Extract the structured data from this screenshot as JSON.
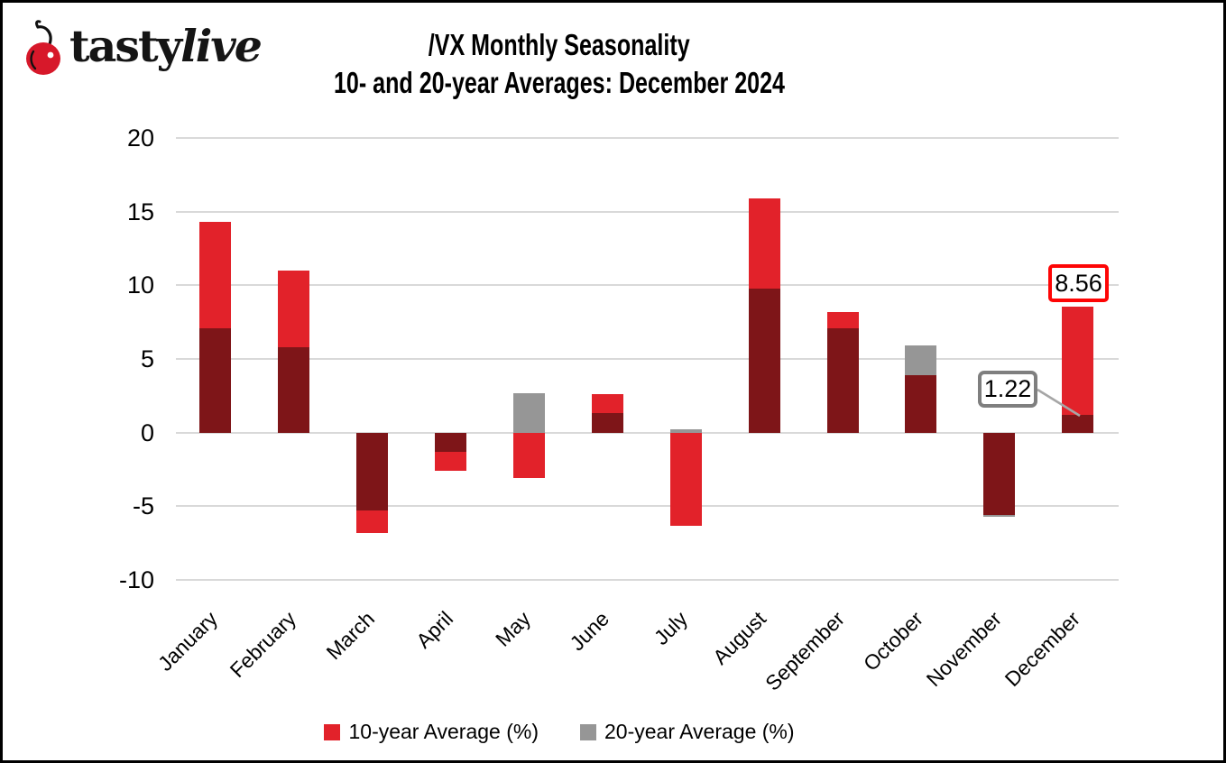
{
  "logo": {
    "tasty": "tasty",
    "live": "live"
  },
  "header": {
    "title_line1": "/VX Monthly Seasonality",
    "title_line2": "10- and 20-year Averages: December 2024"
  },
  "chart_data": {
    "type": "bar",
    "categories": [
      "January",
      "February",
      "March",
      "April",
      "May",
      "June",
      "July",
      "August",
      "September",
      "October",
      "November",
      "December"
    ],
    "series": [
      {
        "name": "10-year Average (%)",
        "color": "#E2222A",
        "values": [
          14.3,
          11.0,
          -6.8,
          -2.6,
          -3.1,
          2.6,
          -6.3,
          15.9,
          8.2,
          3.9,
          -5.6,
          8.56
        ]
      },
      {
        "name": "20-year Average (%)",
        "color": "#969696",
        "values": [
          7.1,
          5.8,
          -5.3,
          -1.3,
          2.7,
          1.3,
          0.2,
          9.8,
          7.1,
          5.9,
          -5.7,
          1.22
        ]
      }
    ],
    "overlap_color": "#7E1518",
    "gridline_color": "#D9D9D9",
    "yticks": [
      20,
      15,
      10,
      5,
      0,
      -5,
      -10
    ],
    "ylim": [
      -10,
      20
    ],
    "grid": true,
    "legend_position": "bottom",
    "annotations": [
      {
        "text": "8.56",
        "month": "December",
        "series": "10-year Average (%)",
        "border_color": "#FE0505"
      },
      {
        "text": "1.22",
        "month": "December",
        "series": "20-year Average (%)",
        "border_color": "#7F7F7F"
      }
    ]
  }
}
